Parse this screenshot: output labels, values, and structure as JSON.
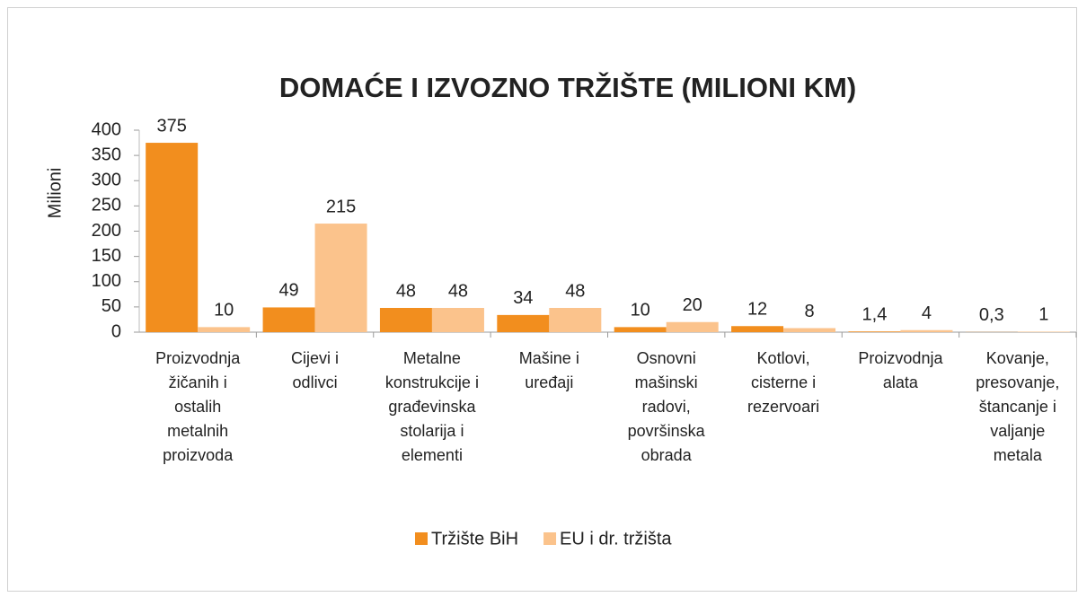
{
  "chart_data": {
    "type": "bar",
    "title": "DOMAĆE I IZVOZNO TRŽIŠTE (MILIONI KM)",
    "y_label": "Milioni",
    "categories": [
      "Proizvodnja\nžičanih i\nostalih\nmetalnih\nproizvoda",
      "Cijevi i\nodlivci",
      "Metalne\nkonstrukcije i\ngrađevinska\nstolarija i\nelementi",
      "Mašine i\nuređaji",
      "Osnovni\nmašinski\nradovi,\npovršinska\nobrada",
      "Kotlovi,\ncisterne i\nrezervoari",
      "Proizvodnja\nalata",
      "Kovanje,\npresovanje,\nštancanje i\nvaljanje\nmetala"
    ],
    "series": [
      {
        "name": "Tržište BiH",
        "color": "#f28e1e",
        "values": [
          375,
          49,
          48,
          34,
          10,
          12,
          1.4,
          0.3
        ],
        "value_labels": [
          "375",
          "49",
          "48",
          "34",
          "10",
          "12",
          "1,4",
          "0,3"
        ]
      },
      {
        "name": "EU i dr. tržišta",
        "color": "#fbc38c",
        "values": [
          10,
          215,
          48,
          48,
          20,
          8,
          4,
          1
        ],
        "value_labels": [
          "10",
          "215",
          "48",
          "48",
          "20",
          "8",
          "4",
          "1"
        ]
      }
    ],
    "ylim": [
      0,
      400
    ],
    "yticks": [
      0,
      50,
      100,
      150,
      200,
      250,
      300,
      350,
      400
    ],
    "legend": "bottom",
    "grid": false
  }
}
